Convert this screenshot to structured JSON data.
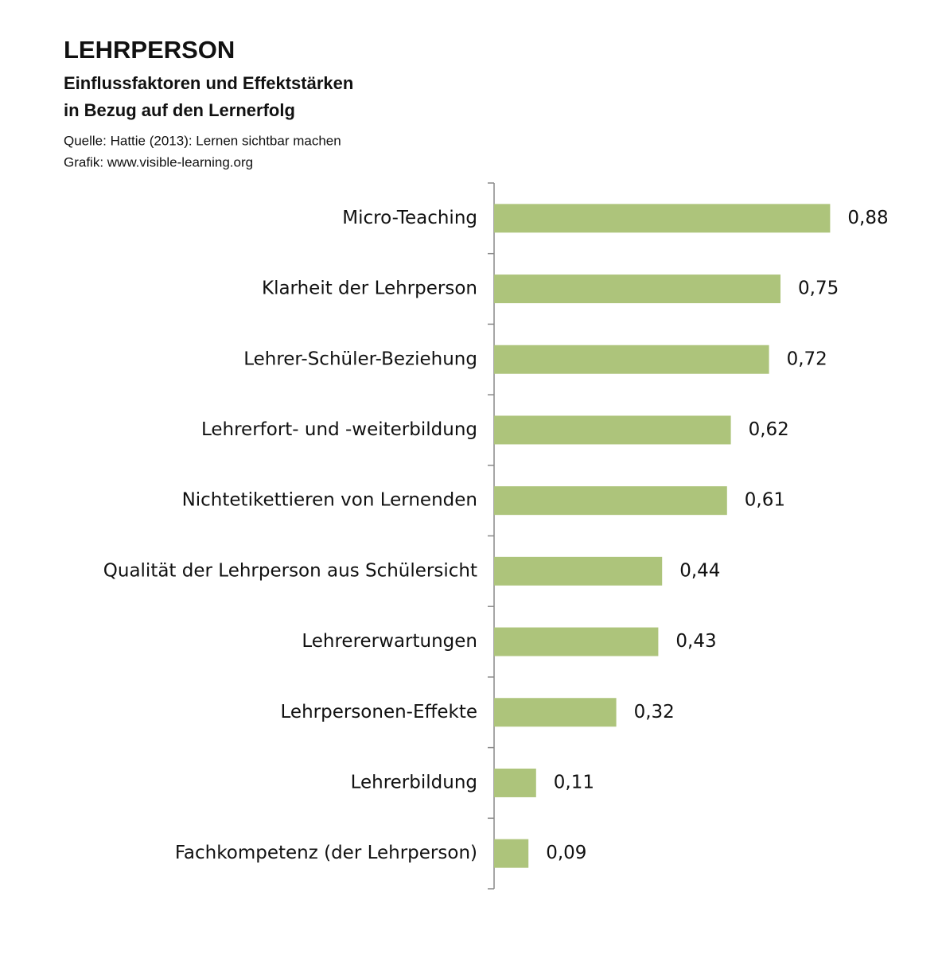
{
  "chart_data": {
    "type": "bar",
    "orientation": "horizontal",
    "title": "LEHRPERSON",
    "subtitle": [
      "Einflussfaktoren und Effektstärken",
      "in Bezug auf den Lernerfolg"
    ],
    "source": [
      "Quelle: Hattie (2013): Lernen sichtbar machen",
      "Grafik: www.visible-learning.org"
    ],
    "categories": [
      "Micro-Teaching",
      "Klarheit der Lehrperson",
      "Lehrer-Schüler-Beziehung",
      "Lehrerfort- und -weiterbildung",
      "Nichtetikettieren von Lernenden",
      "Qualität der Lehrperson aus Schülersicht",
      "Lehrererwartungen",
      "Lehrpersonen-Effekte",
      "Lehrerbildung",
      "Fachkompetenz (der Lehrperson)"
    ],
    "values": [
      0.88,
      0.75,
      0.72,
      0.62,
      0.61,
      0.44,
      0.43,
      0.32,
      0.11,
      0.09
    ],
    "value_labels": [
      "0,88",
      "0,75",
      "0,72",
      "0,62",
      "0,61",
      "0,44",
      "0,43",
      "0,32",
      "0,11",
      "0,09"
    ],
    "color": "#adc47b",
    "xlim": [
      0,
      1
    ]
  }
}
